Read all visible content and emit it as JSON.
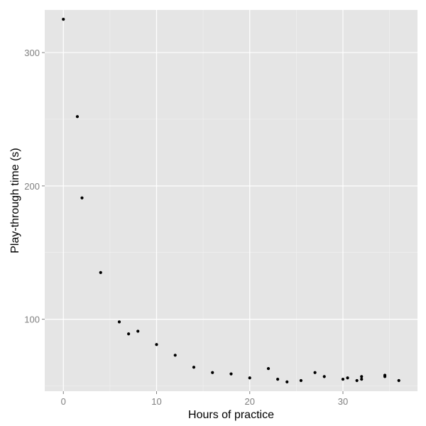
{
  "chart_data": {
    "type": "scatter",
    "title": "",
    "xlabel": "Hours of practice",
    "ylabel": "Play-through time (s)",
    "xlim": [
      -2,
      38
    ],
    "ylim": [
      46,
      332
    ],
    "x_ticks": [
      0,
      10,
      20,
      30
    ],
    "x_tick_labels": [
      "0",
      "10",
      "20",
      "30"
    ],
    "x_minor_ticks": [
      5,
      15,
      25,
      35
    ],
    "y_ticks": [
      100,
      200,
      300
    ],
    "y_tick_labels": [
      "100",
      "200",
      "300"
    ],
    "y_minor_ticks": [
      50,
      150,
      250
    ],
    "grid": true,
    "legend": "none",
    "colors": {
      "panel": "#e5e5e5",
      "grid_major": "#ffffff",
      "grid_minor": "#f2f2f2",
      "point": "#000000",
      "tick_label": "#7f7f7f",
      "tick_mark": "#7f7f7f"
    },
    "points": [
      {
        "x": 0,
        "y": 325
      },
      {
        "x": 1.5,
        "y": 252
      },
      {
        "x": 2,
        "y": 191
      },
      {
        "x": 4,
        "y": 135
      },
      {
        "x": 6,
        "y": 98
      },
      {
        "x": 7,
        "y": 89
      },
      {
        "x": 8,
        "y": 91
      },
      {
        "x": 10,
        "y": 81
      },
      {
        "x": 12,
        "y": 73
      },
      {
        "x": 14,
        "y": 64
      },
      {
        "x": 16,
        "y": 60
      },
      {
        "x": 18,
        "y": 59
      },
      {
        "x": 20,
        "y": 56
      },
      {
        "x": 22,
        "y": 63
      },
      {
        "x": 23,
        "y": 55
      },
      {
        "x": 24,
        "y": 53
      },
      {
        "x": 25.5,
        "y": 54
      },
      {
        "x": 27,
        "y": 60
      },
      {
        "x": 28,
        "y": 57
      },
      {
        "x": 30,
        "y": 55
      },
      {
        "x": 30.5,
        "y": 56
      },
      {
        "x": 31.5,
        "y": 54
      },
      {
        "x": 32,
        "y": 55
      },
      {
        "x": 32,
        "y": 57
      },
      {
        "x": 34.5,
        "y": 57
      },
      {
        "x": 34.5,
        "y": 58
      },
      {
        "x": 36,
        "y": 54
      }
    ]
  }
}
